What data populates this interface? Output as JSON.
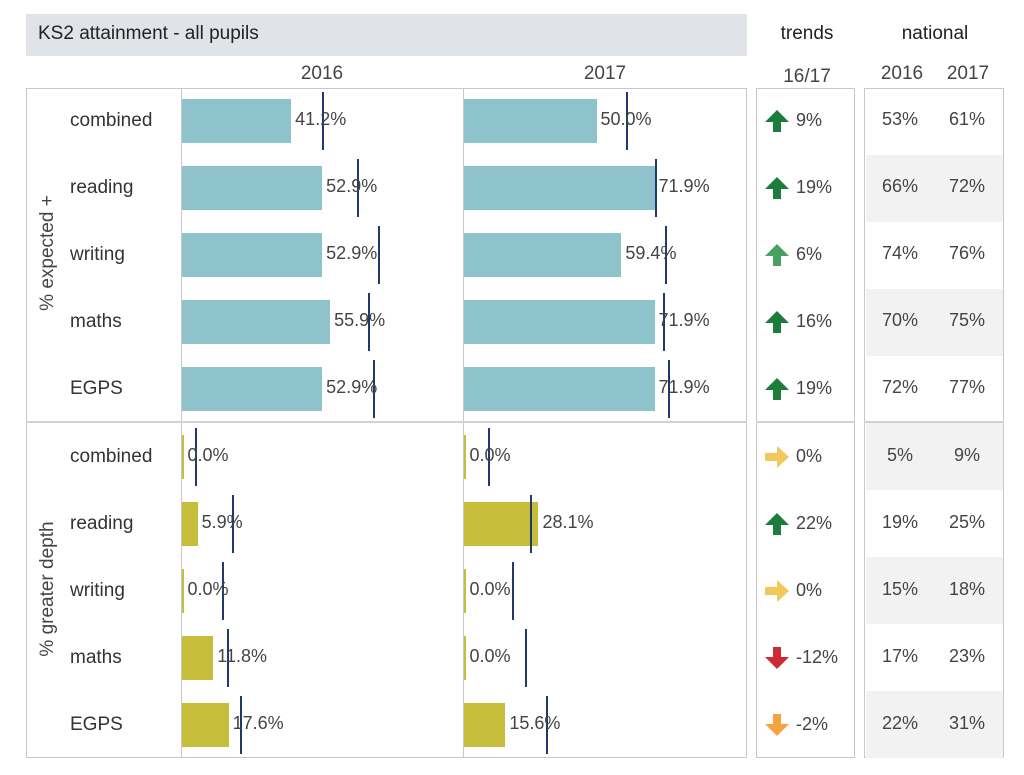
{
  "title": "KS2 attainment - all pupils",
  "headers": {
    "trends": "trends",
    "national": "national",
    "trend_period": "16/17"
  },
  "years": [
    "2016",
    "2017"
  ],
  "scale_max": 100,
  "colors": {
    "expected_bar": "#8fc3cb",
    "greater_depth_bar": "#c6bd3a",
    "reference_line": "#1f3a6b",
    "trend_up_strong": "#1b7d3b",
    "trend_up_light": "#4aa061",
    "trend_flat": "#f2c85b",
    "trend_down_strong": "#cc2a36",
    "trend_down_light": "#f5a440"
  },
  "chart_data": {
    "type": "bar",
    "title": "KS2 attainment - all pupils",
    "categories": [
      "combined",
      "reading",
      "writing",
      "maths",
      "EGPS"
    ],
    "groups": [
      {
        "name": "% expected +",
        "rows": [
          {
            "category": "combined",
            "v2016": 41.2,
            "v2017": 50.0,
            "l2016": "41.2%",
            "l2017": "50.0%",
            "ref2016": 53,
            "ref2017": 61,
            "trend": "9%",
            "trend_dir": "up_strong",
            "nat2016": "53%",
            "nat2017": "61%"
          },
          {
            "category": "reading",
            "v2016": 52.9,
            "v2017": 71.9,
            "l2016": "52.9%",
            "l2017": "71.9%",
            "ref2016": 66,
            "ref2017": 72,
            "trend": "19%",
            "trend_dir": "up_strong",
            "nat2016": "66%",
            "nat2017": "72%"
          },
          {
            "category": "writing",
            "v2016": 52.9,
            "v2017": 59.4,
            "l2016": "52.9%",
            "l2017": "59.4%",
            "ref2016": 74,
            "ref2017": 76,
            "trend": "6%",
            "trend_dir": "up_light",
            "nat2016": "74%",
            "nat2017": "76%"
          },
          {
            "category": "maths",
            "v2016": 55.9,
            "v2017": 71.9,
            "l2016": "55.9%",
            "l2017": "71.9%",
            "ref2016": 70,
            "ref2017": 75,
            "trend": "16%",
            "trend_dir": "up_strong",
            "nat2016": "70%",
            "nat2017": "75%"
          },
          {
            "category": "EGPS",
            "v2016": 52.9,
            "v2017": 71.9,
            "l2016": "52.9%",
            "l2017": "71.9%",
            "ref2016": 72,
            "ref2017": 77,
            "trend": "19%",
            "trend_dir": "up_strong",
            "nat2016": "72%",
            "nat2017": "77%"
          }
        ]
      },
      {
        "name": "% greater depth",
        "rows": [
          {
            "category": "combined",
            "v2016": 0.0,
            "v2017": 0.0,
            "l2016": "0.0%",
            "l2017": "0.0%",
            "ref2016": 5,
            "ref2017": 9,
            "trend": "0%",
            "trend_dir": "flat",
            "nat2016": "5%",
            "nat2017": "9%"
          },
          {
            "category": "reading",
            "v2016": 5.9,
            "v2017": 28.1,
            "l2016": "5.9%",
            "l2017": "28.1%",
            "ref2016": 19,
            "ref2017": 25,
            "trend": "22%",
            "trend_dir": "up_strong",
            "nat2016": "19%",
            "nat2017": "25%"
          },
          {
            "category": "writing",
            "v2016": 0.0,
            "v2017": 0.0,
            "l2016": "0.0%",
            "l2017": "0.0%",
            "ref2016": 15,
            "ref2017": 18,
            "trend": "0%",
            "trend_dir": "flat",
            "nat2016": "15%",
            "nat2017": "18%"
          },
          {
            "category": "maths",
            "v2016": 11.8,
            "v2017": 0.0,
            "l2016": "11.8%",
            "l2017": "0.0%",
            "ref2016": 17,
            "ref2017": 23,
            "trend": "-12%",
            "trend_dir": "down_strong",
            "nat2016": "17%",
            "nat2017": "23%"
          },
          {
            "category": "EGPS",
            "v2016": 17.6,
            "v2017": 15.6,
            "l2016": "17.6%",
            "l2017": "15.6%",
            "ref2016": 22,
            "ref2017": 31,
            "trend": "-2%",
            "trend_dir": "down_light",
            "nat2016": "22%",
            "nat2017": "31%"
          }
        ]
      }
    ]
  }
}
